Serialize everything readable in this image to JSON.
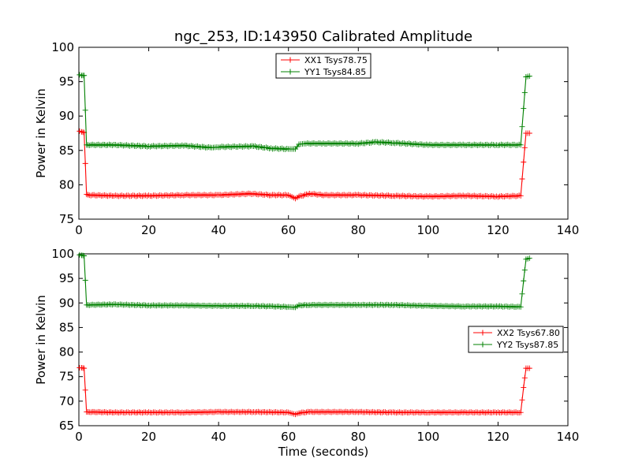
{
  "chart_data": [
    {
      "type": "line",
      "title": "ngc_253, ID:143950 Calibrated Amplitude",
      "xlabel": "",
      "ylabel": "Power in Kelvin",
      "xlim": [
        0,
        140
      ],
      "ylim": [
        75,
        100
      ],
      "xticks": [
        0,
        20,
        40,
        60,
        80,
        100,
        120,
        140
      ],
      "yticks": [
        75,
        80,
        85,
        90,
        95,
        100
      ],
      "legend_position": "top-center",
      "series": [
        {
          "name": "XX1 Tsys78.75",
          "color": "#ff0000",
          "marker": "+",
          "points": [
            [
              0.2,
              87.8
            ],
            [
              0.8,
              87.7
            ],
            [
              1.5,
              87.6
            ],
            [
              2.2,
              78.6
            ],
            [
              3,
              78.5
            ],
            [
              10,
              78.4
            ],
            [
              20,
              78.4
            ],
            [
              30,
              78.5
            ],
            [
              40,
              78.5
            ],
            [
              49,
              78.7
            ],
            [
              55,
              78.5
            ],
            [
              60,
              78.5
            ],
            [
              62,
              78.0
            ],
            [
              63,
              78.3
            ],
            [
              66,
              78.7
            ],
            [
              70,
              78.5
            ],
            [
              80,
              78.5
            ],
            [
              90,
              78.4
            ],
            [
              100,
              78.3
            ],
            [
              110,
              78.4
            ],
            [
              120,
              78.3
            ],
            [
              126.5,
              78.4
            ],
            [
              127.3,
              83.3
            ],
            [
              128,
              87.5
            ],
            [
              129,
              87.5
            ]
          ]
        },
        {
          "name": "YY1 Tsys84.85",
          "color": "#008000",
          "marker": "+",
          "points": [
            [
              0.2,
              96.0
            ],
            [
              0.8,
              95.9
            ],
            [
              1.5,
              95.9
            ],
            [
              2.2,
              85.8
            ],
            [
              3,
              85.8
            ],
            [
              10,
              85.8
            ],
            [
              20,
              85.6
            ],
            [
              30,
              85.7
            ],
            [
              38,
              85.4
            ],
            [
              40,
              85.5
            ],
            [
              50,
              85.6
            ],
            [
              55,
              85.3
            ],
            [
              60,
              85.2
            ],
            [
              62,
              85.2
            ],
            [
              63,
              85.9
            ],
            [
              65,
              86.0
            ],
            [
              70,
              86.0
            ],
            [
              80,
              86.0
            ],
            [
              85,
              86.2
            ],
            [
              90,
              86.1
            ],
            [
              100,
              85.8
            ],
            [
              110,
              85.8
            ],
            [
              120,
              85.8
            ],
            [
              126.5,
              85.8
            ],
            [
              127.3,
              91.1
            ],
            [
              128,
              95.7
            ],
            [
              129,
              95.8
            ]
          ]
        }
      ]
    },
    {
      "type": "line",
      "title": "",
      "xlabel": "Time (seconds)",
      "ylabel": "Power in Kelvin",
      "xlim": [
        0,
        140
      ],
      "ylim": [
        65,
        100
      ],
      "xticks": [
        0,
        20,
        40,
        60,
        80,
        100,
        120,
        140
      ],
      "yticks": [
        65,
        70,
        75,
        80,
        85,
        90,
        95,
        100
      ],
      "legend_position": "center-right",
      "series": [
        {
          "name": "XX2 Tsys67.80",
          "color": "#ff0000",
          "marker": "+",
          "points": [
            [
              0.2,
              76.8
            ],
            [
              0.8,
              76.8
            ],
            [
              1.5,
              76.7
            ],
            [
              2.2,
              67.8
            ],
            [
              3,
              67.8
            ],
            [
              10,
              67.7
            ],
            [
              20,
              67.7
            ],
            [
              30,
              67.7
            ],
            [
              40,
              67.8
            ],
            [
              50,
              67.8
            ],
            [
              60,
              67.7
            ],
            [
              62,
              67.3
            ],
            [
              63,
              67.6
            ],
            [
              66,
              67.8
            ],
            [
              70,
              67.8
            ],
            [
              80,
              67.8
            ],
            [
              90,
              67.7
            ],
            [
              100,
              67.7
            ],
            [
              110,
              67.7
            ],
            [
              120,
              67.7
            ],
            [
              126.5,
              67.7
            ],
            [
              127.3,
              72.8
            ],
            [
              128,
              76.7
            ],
            [
              129,
              76.7
            ]
          ]
        },
        {
          "name": "YY2 Tsys87.85",
          "color": "#008000",
          "marker": "+",
          "points": [
            [
              0.2,
              99.8
            ],
            [
              0.8,
              99.7
            ],
            [
              1.5,
              99.6
            ],
            [
              2.2,
              89.6
            ],
            [
              3,
              89.6
            ],
            [
              10,
              89.7
            ],
            [
              20,
              89.5
            ],
            [
              30,
              89.5
            ],
            [
              40,
              89.4
            ],
            [
              50,
              89.4
            ],
            [
              55,
              89.3
            ],
            [
              60,
              89.2
            ],
            [
              62,
              89.1
            ],
            [
              63,
              89.5
            ],
            [
              66,
              89.6
            ],
            [
              70,
              89.6
            ],
            [
              80,
              89.6
            ],
            [
              90,
              89.6
            ],
            [
              100,
              89.4
            ],
            [
              110,
              89.3
            ],
            [
              120,
              89.3
            ],
            [
              126.5,
              89.2
            ],
            [
              127.3,
              94.5
            ],
            [
              128,
              98.9
            ],
            [
              129,
              99.1
            ]
          ]
        }
      ]
    }
  ]
}
